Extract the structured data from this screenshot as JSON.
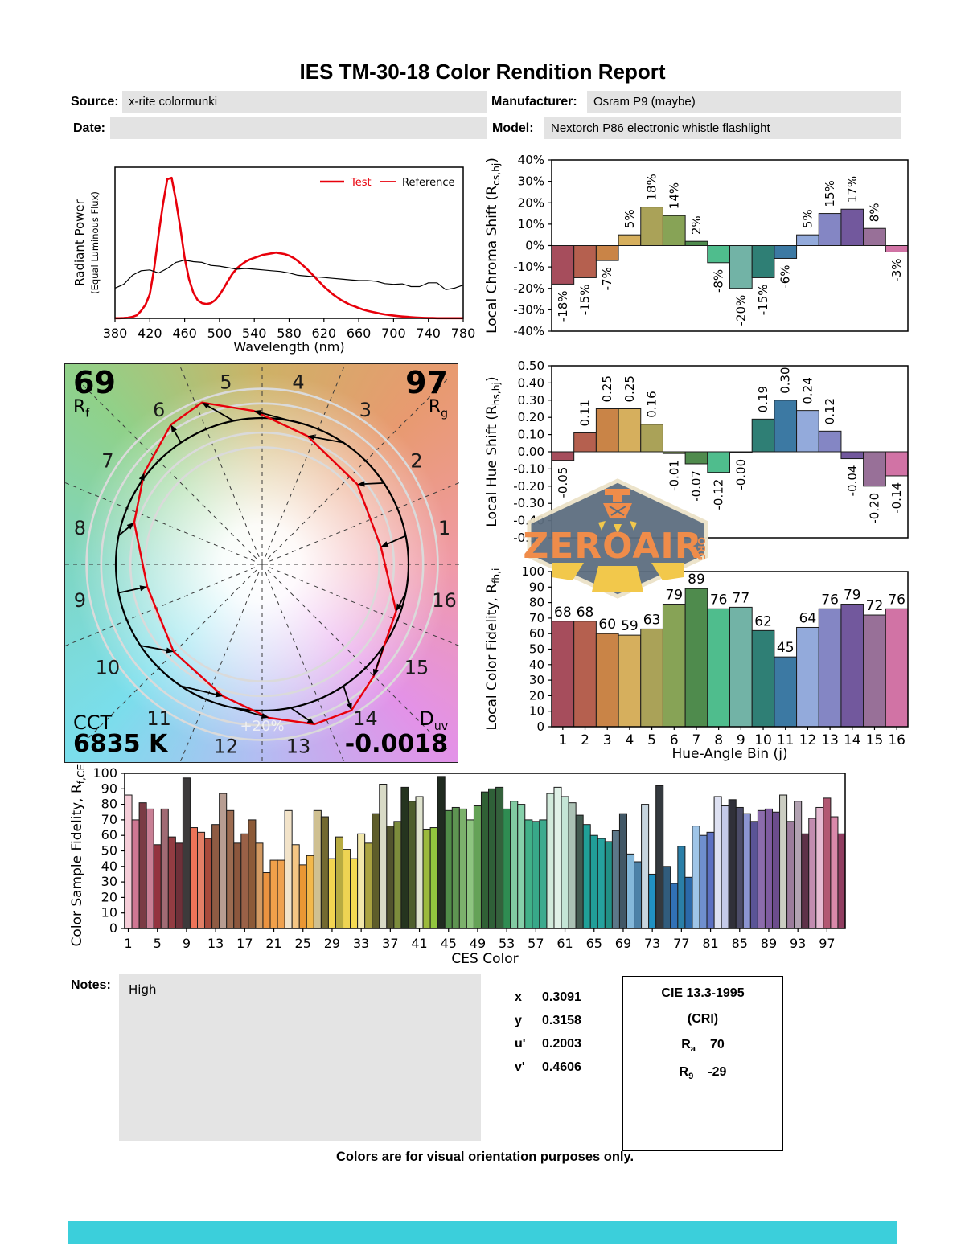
{
  "title": "IES TM-30-18 Color Rendition Report",
  "meta": {
    "source_label": "Source:",
    "source_value": "x-rite colormunki",
    "manufacturer_label": "Manufacturer:",
    "manufacturer_value": "Osram P9 (maybe)",
    "date_label": "Date:",
    "date_value": "",
    "model_label": "Model:",
    "model_value": "Nextorch P86 electronic whistle flashlight"
  },
  "notes": {
    "label": "Notes:",
    "text": "High"
  },
  "footer": "Colors are for visual orientation purposes only.",
  "chromaticity": {
    "rows": [
      {
        "label": "x",
        "value": "0.3091"
      },
      {
        "label": "y",
        "value": "0.3158"
      },
      {
        "label": "u'",
        "value": "0.2003"
      },
      {
        "label": "v'",
        "value": "0.4606"
      }
    ]
  },
  "cri_box": {
    "title": "CIE 13.3-1995",
    "subtitle": "(CRI)",
    "ra_label": "R",
    "ra_sub": "a",
    "ra_value": "70",
    "r9_label": "R",
    "r9_sub": "9",
    "r9_value": "-29"
  },
  "cvg_panel": {
    "rf_value": "69",
    "rf_letter": "R",
    "rf_sub": "f",
    "rg_value": "97",
    "rg_letter": "R",
    "rg_sub": "g",
    "cct_label": "CCT",
    "cct_value": "6835 K",
    "duv_letter": "D",
    "duv_sub": "uv",
    "duv_value": "-0.0018",
    "ring_label": "+20%"
  },
  "watermark": {
    "line1": "ZEROAIR",
    "line2": "ORG"
  },
  "hue_bin_colors": [
    "#a64d5c",
    "#b5604f",
    "#c98447",
    "#d6af5d",
    "#aaa258",
    "#87a356",
    "#4f8b4d",
    "#4fbd8d",
    "#72b3a6",
    "#2f7f75",
    "#3c79a3",
    "#93aadb",
    "#8486c4",
    "#72589d",
    "#987098",
    "#d173a5"
  ],
  "chart_data": [
    {
      "id": "spd",
      "type": "line",
      "xlabel": "Wavelength (nm)",
      "ylabel": "Radiant Power",
      "ylabel2": "(Equal Luminous Flux)",
      "xlim": [
        380,
        780
      ],
      "ylim": [
        0,
        1
      ],
      "xticks": [
        380,
        420,
        460,
        500,
        540,
        580,
        620,
        660,
        700,
        740,
        780
      ],
      "legend": [
        {
          "label": "Test",
          "swatch_color": "#e8000b",
          "label_color": "#e8000b",
          "lw": 2.6
        },
        {
          "label": "Reference",
          "swatch_color": "#e8000b",
          "label_color": "#000000",
          "lw": 1.8
        }
      ],
      "series": [
        {
          "name": "Test",
          "color": "#e8000b",
          "width": 2.6,
          "x_start": 380,
          "x_step": 5,
          "y": [
            0.001,
            0.001,
            0.002,
            0.004,
            0.01,
            0.02,
            0.05,
            0.09,
            0.16,
            0.33,
            0.55,
            0.75,
            0.92,
            0.93,
            0.78,
            0.6,
            0.4,
            0.26,
            0.17,
            0.12,
            0.1,
            0.095,
            0.1,
            0.12,
            0.155,
            0.2,
            0.25,
            0.295,
            0.33,
            0.355,
            0.375,
            0.39,
            0.4,
            0.41,
            0.42,
            0.425,
            0.43,
            0.435,
            0.43,
            0.425,
            0.415,
            0.4,
            0.38,
            0.355,
            0.33,
            0.3,
            0.27,
            0.24,
            0.21,
            0.185,
            0.16,
            0.14,
            0.12,
            0.105,
            0.09,
            0.08,
            0.068,
            0.058,
            0.05,
            0.043,
            0.037,
            0.031,
            0.026,
            0.022,
            0.018,
            0.015,
            0.012,
            0.01,
            0.008,
            0.006,
            0.004,
            0.003,
            0.002,
            0.002,
            0.001,
            0.001,
            0.001,
            0.001,
            0.001,
            0.001,
            0.001
          ]
        },
        {
          "name": "Reference",
          "color": "#000000",
          "width": 1.2,
          "x_start": 380,
          "x_step": 10,
          "y": [
            0.2,
            0.225,
            0.285,
            0.315,
            0.32,
            0.3,
            0.33,
            0.37,
            0.385,
            0.375,
            0.37,
            0.35,
            0.345,
            0.335,
            0.325,
            0.33,
            0.325,
            0.32,
            0.315,
            0.31,
            0.3,
            0.285,
            0.28,
            0.275,
            0.27,
            0.265,
            0.26,
            0.255,
            0.25,
            0.25,
            0.245,
            0.23,
            0.225,
            0.228,
            0.21,
            0.21,
            0.235,
            0.235,
            0.19,
            0.2,
            0.22
          ]
        }
      ]
    },
    {
      "id": "chroma_shift",
      "type": "bar",
      "ylabel_parts": [
        {
          "t": "Local Chroma Shift (R",
          "sub": false
        },
        {
          "t": "cs,hj",
          "sub": true
        },
        {
          "t": ")",
          "sub": false
        }
      ],
      "categories": [
        1,
        2,
        3,
        4,
        5,
        6,
        7,
        8,
        9,
        10,
        11,
        12,
        13,
        14,
        15,
        16
      ],
      "values": [
        -18,
        -15,
        -7,
        5,
        18,
        14,
        2,
        -8,
        -20,
        -15,
        -6,
        5,
        15,
        17,
        8,
        -3
      ],
      "bar_labels": [
        "-18%",
        "-15%",
        "-7%",
        "5%",
        "18%",
        "14%",
        "2%",
        "-8%",
        "-20%",
        "-15%",
        "-6%",
        "5%",
        "15%",
        "17%",
        "8%",
        "-3%"
      ],
      "ylim": [
        -40,
        40
      ],
      "yticks": [
        {
          "v": 40,
          "label": "40%"
        },
        {
          "v": 30,
          "label": "30%"
        },
        {
          "v": 20,
          "label": "20%"
        },
        {
          "v": 10,
          "label": "10%"
        },
        {
          "v": 0,
          "label": "0%"
        },
        {
          "v": -10,
          "label": "-10%"
        },
        {
          "v": -20,
          "label": "-20%"
        },
        {
          "v": -30,
          "label": "-30%"
        },
        {
          "v": -40,
          "label": "-40%"
        }
      ]
    },
    {
      "id": "hue_shift",
      "type": "bar",
      "ylabel_parts": [
        {
          "t": "Local Hue Shift (R",
          "sub": false
        },
        {
          "t": "hs,hj",
          "sub": true
        },
        {
          "t": ")",
          "sub": false
        }
      ],
      "categories": [
        1,
        2,
        3,
        4,
        5,
        6,
        7,
        8,
        9,
        10,
        11,
        12,
        13,
        14,
        15,
        16
      ],
      "values": [
        -0.05,
        0.11,
        0.25,
        0.25,
        0.16,
        -0.01,
        -0.07,
        -0.12,
        -0.004,
        0.19,
        0.3,
        0.24,
        0.12,
        -0.04,
        -0.2,
        -0.14
      ],
      "bar_labels": [
        "-0.05",
        "0.11",
        "0.25",
        "0.25",
        "0.16",
        "-0.01",
        "-0.07",
        "-0.12",
        "-0.00",
        "0.19",
        "0.30",
        "0.24",
        "0.12",
        "-0.04",
        "-0.20",
        "-0.14"
      ],
      "ylim": [
        -0.5,
        0.5
      ],
      "yticks": [
        {
          "v": 0.5,
          "label": "0.50"
        },
        {
          "v": 0.4,
          "label": "0.40"
        },
        {
          "v": 0.3,
          "label": "0.30"
        },
        {
          "v": 0.2,
          "label": "0.20"
        },
        {
          "v": 0.1,
          "label": "0.10"
        },
        {
          "v": 0,
          "label": "0.00"
        },
        {
          "v": -0.1,
          "label": "-0.10"
        },
        {
          "v": -0.2,
          "label": "-0.20"
        },
        {
          "v": -0.3,
          "label": "-0.30"
        },
        {
          "v": -0.4,
          "label": "-0.40"
        },
        {
          "v": -0.5,
          "label": "-0.50"
        }
      ]
    },
    {
      "id": "local_fidelity",
      "type": "bar",
      "xlabel": "Hue-Angle Bin (j)",
      "ylabel_parts": [
        {
          "t": "Local Color Fidelity, R",
          "sub": false
        },
        {
          "t": "fh,i",
          "sub": true
        }
      ],
      "categories": [
        1,
        2,
        3,
        4,
        5,
        6,
        7,
        8,
        9,
        10,
        11,
        12,
        13,
        14,
        15,
        16
      ],
      "values": [
        68,
        68,
        60,
        59,
        63,
        79,
        89,
        76,
        77,
        62,
        45,
        64,
        76,
        79,
        72,
        76
      ],
      "bar_labels": [
        "68",
        "68",
        "60",
        "59",
        "63",
        "79",
        "89",
        "76",
        "77",
        "62",
        "45",
        "64",
        "76",
        "79",
        "72",
        "76"
      ],
      "ylim": [
        0,
        100
      ],
      "yticks": [
        {
          "v": 100,
          "label": "100"
        },
        {
          "v": 90,
          "label": "90"
        },
        {
          "v": 80,
          "label": "80"
        },
        {
          "v": 70,
          "label": "70"
        },
        {
          "v": 60,
          "label": "60"
        },
        {
          "v": 50,
          "label": "50"
        },
        {
          "v": 40,
          "label": "40"
        },
        {
          "v": 30,
          "label": "30"
        },
        {
          "v": 20,
          "label": "20"
        },
        {
          "v": 10,
          "label": "10"
        },
        {
          "v": 0,
          "label": "0"
        }
      ]
    },
    {
      "id": "ces_fidelity",
      "type": "bar",
      "xlabel": "CES Color",
      "ylabel_parts": [
        {
          "t": "Color Sample Fidelity, R",
          "sub": false
        },
        {
          "t": "f,CESi",
          "sub": true
        }
      ],
      "xticks": [
        1,
        5,
        9,
        13,
        17,
        21,
        25,
        29,
        33,
        37,
        41,
        45,
        49,
        53,
        57,
        61,
        65,
        69,
        73,
        77,
        81,
        85,
        89,
        93,
        97
      ],
      "values": [
        86,
        70,
        81,
        77,
        54,
        77,
        59,
        55,
        97,
        65,
        62,
        58,
        67,
        87,
        76,
        55,
        61,
        70,
        55,
        36,
        44,
        44,
        76,
        54,
        41,
        47,
        76,
        72,
        45,
        59,
        51,
        45,
        61,
        55,
        74,
        93,
        66,
        69,
        91,
        82,
        85,
        64,
        65,
        98,
        76,
        78,
        77,
        70,
        79,
        88,
        90,
        91,
        77,
        82,
        80,
        70,
        69,
        70,
        87,
        91,
        85,
        81,
        73,
        67,
        60,
        58,
        56,
        63,
        74,
        48,
        43,
        80,
        35,
        92,
        40,
        29,
        53,
        33,
        66,
        60,
        62,
        85,
        79,
        83,
        78,
        74,
        69,
        76,
        77,
        75,
        86,
        69,
        82,
        61,
        71,
        78,
        84,
        72,
        61
      ],
      "colors": [
        "#f5cdd8",
        "#cf7793",
        "#7a3b44",
        "#c87f95",
        "#93333f",
        "#a06b74",
        "#933c42",
        "#6f3039",
        "#3d3a3b",
        "#ed7358",
        "#e27f66",
        "#a84a3b",
        "#8f5b43",
        "#b79d92",
        "#9c6b50",
        "#8c573d",
        "#9a6147",
        "#8c5a38",
        "#d39a62",
        "#eb9340",
        "#f0a04a",
        "#efa14e",
        "#f2e3c9",
        "#f5c684",
        "#ea9734",
        "#f2b84a",
        "#cfc091",
        "#736931",
        "#f2d452",
        "#b7ab41",
        "#eed453",
        "#f4da51",
        "#f1e7ab",
        "#aaa341",
        "#5e5d2a",
        "#d8dac6",
        "#51532d",
        "#7c8c3c",
        "#25341f",
        "#4e5e2c",
        "#e0e4cf",
        "#9cba3c",
        "#91c63e",
        "#202b20",
        "#508c48",
        "#5e9452",
        "#7cb16c",
        "#8ec580",
        "#65a257",
        "#306035",
        "#2f6038",
        "#34613c",
        "#2f8c52",
        "#81caa2",
        "#86d0aa",
        "#41b088",
        "#38a889",
        "#3caa8e",
        "#d1eadb",
        "#e0f1e7",
        "#c4e5d6",
        "#abc1b4",
        "#435a50",
        "#20a098",
        "#219e98",
        "#25a29e",
        "#219186",
        "#5c7788",
        "#415766",
        "#84b8da",
        "#4c81a7",
        "#c7d5de",
        "#2191c2",
        "#34393e",
        "#315c7c",
        "#3171b6",
        "#2a7fa8",
        "#2b69aa",
        "#9fc5e8",
        "#6f8fce",
        "#5c70c2",
        "#dee1f2",
        "#c5cae9",
        "#303039",
        "#4c4c68",
        "#8c95d2",
        "#5a5496",
        "#8c6cac",
        "#7f5ca0",
        "#6c4c8c",
        "#cbcdc2",
        "#9c7c9c",
        "#b2a2b2",
        "#5e3249",
        "#c28cb0",
        "#e5bad2",
        "#b25772",
        "#da89aa",
        "#903d60"
      ],
      "ylim": [
        0,
        100
      ],
      "yticks": [
        {
          "v": 100,
          "label": "100"
        },
        {
          "v": 90,
          "label": "90"
        },
        {
          "v": 80,
          "label": "80"
        },
        {
          "v": 70,
          "label": "70"
        },
        {
          "v": 60,
          "label": "60"
        },
        {
          "v": 50,
          "label": "50"
        },
        {
          "v": 40,
          "label": "40"
        },
        {
          "v": 30,
          "label": "30"
        },
        {
          "v": 20,
          "label": "20"
        },
        {
          "v": 10,
          "label": "10"
        },
        {
          "v": 0,
          "label": "0"
        }
      ]
    },
    {
      "id": "cvg",
      "type": "color-vector-graphic",
      "rf": 69,
      "rg": 97,
      "cct_k": 6835,
      "duv": -0.0018,
      "note": "test polygon computed from chroma_shift (%) and hue_shift (rad) per hue bin",
      "reference_circle": 1.0,
      "guide_circles": [
        0.8,
        0.9,
        1.1,
        1.2
      ]
    }
  ]
}
